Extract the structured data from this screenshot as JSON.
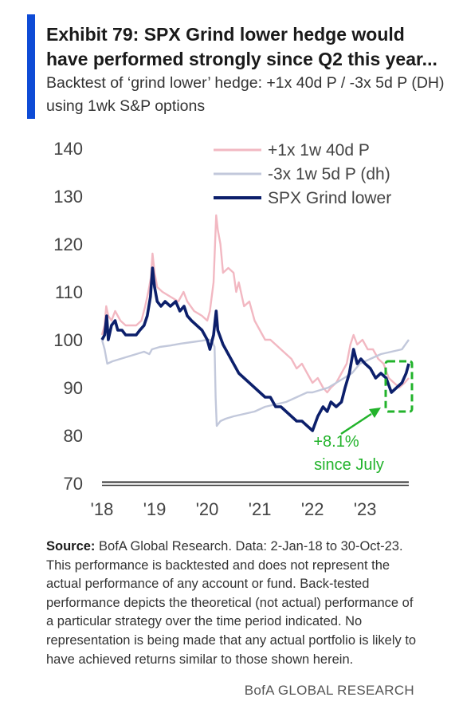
{
  "header": {
    "title": "Exhibit 79: SPX Grind lower hedge would have performed  strongly since Q2 this year...",
    "subtitle": "Backtest of ‘grind lower’ hedge: +1x 40d P / -3x 5d P (DH) using 1wk S&P options"
  },
  "footer": {
    "source_label": "Source:",
    "source_text": " BofA Global Research. Data: 2-Jan-18 to 30-Oct-23. This performance is backtested and does not represent the actual performance of any account or fund. Back-tested performance depicts the theoretical (not actual) performance of a particular strategy over the time period indicated. No representation is being made that any actual portfolio is likely to have achieved returns similar to those shown herein.",
    "brand": "BofA GLOBAL RESEARCH"
  },
  "chart_data": {
    "type": "line",
    "xlabel": "",
    "ylabel": "",
    "xlim": [
      2018.0,
      2023.83
    ],
    "ylim": [
      70,
      140
    ],
    "y_ticks": [
      70,
      80,
      90,
      100,
      110,
      120,
      130,
      140
    ],
    "x_ticks": [
      {
        "value": 2018,
        "label": "'18"
      },
      {
        "value": 2019,
        "label": "'19"
      },
      {
        "value": 2020,
        "label": "'20"
      },
      {
        "value": 2021,
        "label": "'21"
      },
      {
        "value": 2022,
        "label": "'22"
      },
      {
        "value": 2023,
        "label": "'23"
      }
    ],
    "grid": false,
    "legend_position": "top-right",
    "colors": {
      "plus1x": "#f2b8c2",
      "minus3x": "#c2c8db",
      "spx": "#0c1f6b",
      "annotation": "#22b32b",
      "axis": "#333333"
    },
    "series": [
      {
        "name": "+1x 1w 40d P",
        "points": [
          [
            2018.0,
            101
          ],
          [
            2018.05,
            103
          ],
          [
            2018.08,
            107
          ],
          [
            2018.12,
            105
          ],
          [
            2018.18,
            104
          ],
          [
            2018.25,
            106
          ],
          [
            2018.35,
            104
          ],
          [
            2018.45,
            103
          ],
          [
            2018.55,
            103
          ],
          [
            2018.65,
            103
          ],
          [
            2018.75,
            104
          ],
          [
            2018.82,
            107
          ],
          [
            2018.88,
            110
          ],
          [
            2018.93,
            113
          ],
          [
            2018.96,
            118
          ],
          [
            2019.0,
            114
          ],
          [
            2019.05,
            111
          ],
          [
            2019.15,
            110
          ],
          [
            2019.3,
            109
          ],
          [
            2019.45,
            108
          ],
          [
            2019.55,
            110
          ],
          [
            2019.62,
            108
          ],
          [
            2019.75,
            106
          ],
          [
            2019.9,
            105
          ],
          [
            2020.0,
            104
          ],
          [
            2020.05,
            106
          ],
          [
            2020.12,
            112
          ],
          [
            2020.17,
            126
          ],
          [
            2020.2,
            123
          ],
          [
            2020.25,
            120
          ],
          [
            2020.3,
            114
          ],
          [
            2020.4,
            115
          ],
          [
            2020.5,
            114
          ],
          [
            2020.55,
            110
          ],
          [
            2020.6,
            112
          ],
          [
            2020.7,
            107
          ],
          [
            2020.8,
            108
          ],
          [
            2020.9,
            104
          ],
          [
            2021.0,
            102
          ],
          [
            2021.1,
            100
          ],
          [
            2021.2,
            100
          ],
          [
            2021.3,
            99
          ],
          [
            2021.4,
            98
          ],
          [
            2021.5,
            97
          ],
          [
            2021.6,
            96
          ],
          [
            2021.7,
            94
          ],
          [
            2021.8,
            95
          ],
          [
            2021.9,
            93
          ],
          [
            2022.0,
            91
          ],
          [
            2022.1,
            92
          ],
          [
            2022.2,
            90
          ],
          [
            2022.28,
            89
          ],
          [
            2022.35,
            90
          ],
          [
            2022.45,
            91
          ],
          [
            2022.55,
            93
          ],
          [
            2022.65,
            95
          ],
          [
            2022.72,
            99
          ],
          [
            2022.78,
            101
          ],
          [
            2022.85,
            99
          ],
          [
            2022.95,
            100
          ],
          [
            2023.05,
            98
          ],
          [
            2023.15,
            98
          ],
          [
            2023.25,
            96
          ],
          [
            2023.35,
            95
          ],
          [
            2023.45,
            92
          ],
          [
            2023.55,
            91
          ],
          [
            2023.65,
            90
          ],
          [
            2023.75,
            91
          ],
          [
            2023.83,
            92
          ]
        ]
      },
      {
        "name": "-3x 1w 5d P (dh)",
        "points": [
          [
            2018.0,
            100
          ],
          [
            2018.05,
            98
          ],
          [
            2018.1,
            95
          ],
          [
            2018.2,
            95.5
          ],
          [
            2018.35,
            96
          ],
          [
            2018.5,
            96.5
          ],
          [
            2018.65,
            97
          ],
          [
            2018.8,
            97.5
          ],
          [
            2018.9,
            97
          ],
          [
            2018.95,
            98
          ],
          [
            2019.1,
            98.5
          ],
          [
            2019.3,
            98.8
          ],
          [
            2019.5,
            99.2
          ],
          [
            2019.7,
            99.5
          ],
          [
            2019.9,
            99.8
          ],
          [
            2020.0,
            100
          ],
          [
            2020.05,
            100
          ],
          [
            2020.1,
            99.5
          ],
          [
            2020.14,
            98.5
          ],
          [
            2020.16,
            88
          ],
          [
            2020.18,
            82
          ],
          [
            2020.25,
            83
          ],
          [
            2020.35,
            83.5
          ],
          [
            2020.5,
            84
          ],
          [
            2020.7,
            84.5
          ],
          [
            2020.9,
            85
          ],
          [
            2021.1,
            86
          ],
          [
            2021.3,
            86.5
          ],
          [
            2021.5,
            87
          ],
          [
            2021.7,
            88
          ],
          [
            2021.9,
            89
          ],
          [
            2022.0,
            89
          ],
          [
            2022.15,
            89.5
          ],
          [
            2022.3,
            90
          ],
          [
            2022.45,
            91
          ],
          [
            2022.6,
            92
          ],
          [
            2022.75,
            93
          ],
          [
            2022.9,
            95
          ],
          [
            2023.1,
            96
          ],
          [
            2023.3,
            97
          ],
          [
            2023.5,
            97.5
          ],
          [
            2023.7,
            98
          ],
          [
            2023.83,
            100
          ]
        ]
      },
      {
        "name": "SPX Grind lower",
        "points": [
          [
            2018.0,
            100
          ],
          [
            2018.05,
            101
          ],
          [
            2018.09,
            105
          ],
          [
            2018.12,
            100
          ],
          [
            2018.18,
            103
          ],
          [
            2018.25,
            104
          ],
          [
            2018.3,
            102
          ],
          [
            2018.38,
            102
          ],
          [
            2018.45,
            101
          ],
          [
            2018.55,
            101
          ],
          [
            2018.65,
            101
          ],
          [
            2018.72,
            102
          ],
          [
            2018.8,
            103
          ],
          [
            2018.86,
            105
          ],
          [
            2018.92,
            109
          ],
          [
            2018.96,
            115
          ],
          [
            2019.0,
            111
          ],
          [
            2019.05,
            108
          ],
          [
            2019.12,
            107
          ],
          [
            2019.2,
            108
          ],
          [
            2019.3,
            107
          ],
          [
            2019.4,
            108
          ],
          [
            2019.48,
            106
          ],
          [
            2019.56,
            107
          ],
          [
            2019.62,
            105
          ],
          [
            2019.7,
            104
          ],
          [
            2019.8,
            103
          ],
          [
            2019.9,
            102
          ],
          [
            2020.0,
            100
          ],
          [
            2020.05,
            98
          ],
          [
            2020.12,
            101
          ],
          [
            2020.17,
            106
          ],
          [
            2020.2,
            102
          ],
          [
            2020.3,
            99
          ],
          [
            2020.4,
            97
          ],
          [
            2020.5,
            95
          ],
          [
            2020.6,
            93
          ],
          [
            2020.7,
            92
          ],
          [
            2020.8,
            91
          ],
          [
            2020.9,
            90
          ],
          [
            2021.0,
            89
          ],
          [
            2021.1,
            88
          ],
          [
            2021.2,
            88
          ],
          [
            2021.3,
            86
          ],
          [
            2021.4,
            86
          ],
          [
            2021.5,
            85
          ],
          [
            2021.6,
            84
          ],
          [
            2021.7,
            83
          ],
          [
            2021.8,
            83
          ],
          [
            2021.9,
            82
          ],
          [
            2022.0,
            81
          ],
          [
            2022.1,
            84
          ],
          [
            2022.2,
            86
          ],
          [
            2022.28,
            85
          ],
          [
            2022.35,
            87
          ],
          [
            2022.45,
            86
          ],
          [
            2022.55,
            87
          ],
          [
            2022.62,
            90
          ],
          [
            2022.7,
            93
          ],
          [
            2022.78,
            98
          ],
          [
            2022.85,
            95
          ],
          [
            2022.92,
            96
          ],
          [
            2023.0,
            95
          ],
          [
            2023.1,
            94
          ],
          [
            2023.2,
            92
          ],
          [
            2023.3,
            93
          ],
          [
            2023.4,
            92
          ],
          [
            2023.5,
            89
          ],
          [
            2023.6,
            90
          ],
          [
            2023.7,
            91
          ],
          [
            2023.78,
            93
          ],
          [
            2023.83,
            95
          ]
        ]
      }
    ],
    "annotations": [
      {
        "line1": "+8.1%",
        "line2": "since July"
      }
    ]
  }
}
